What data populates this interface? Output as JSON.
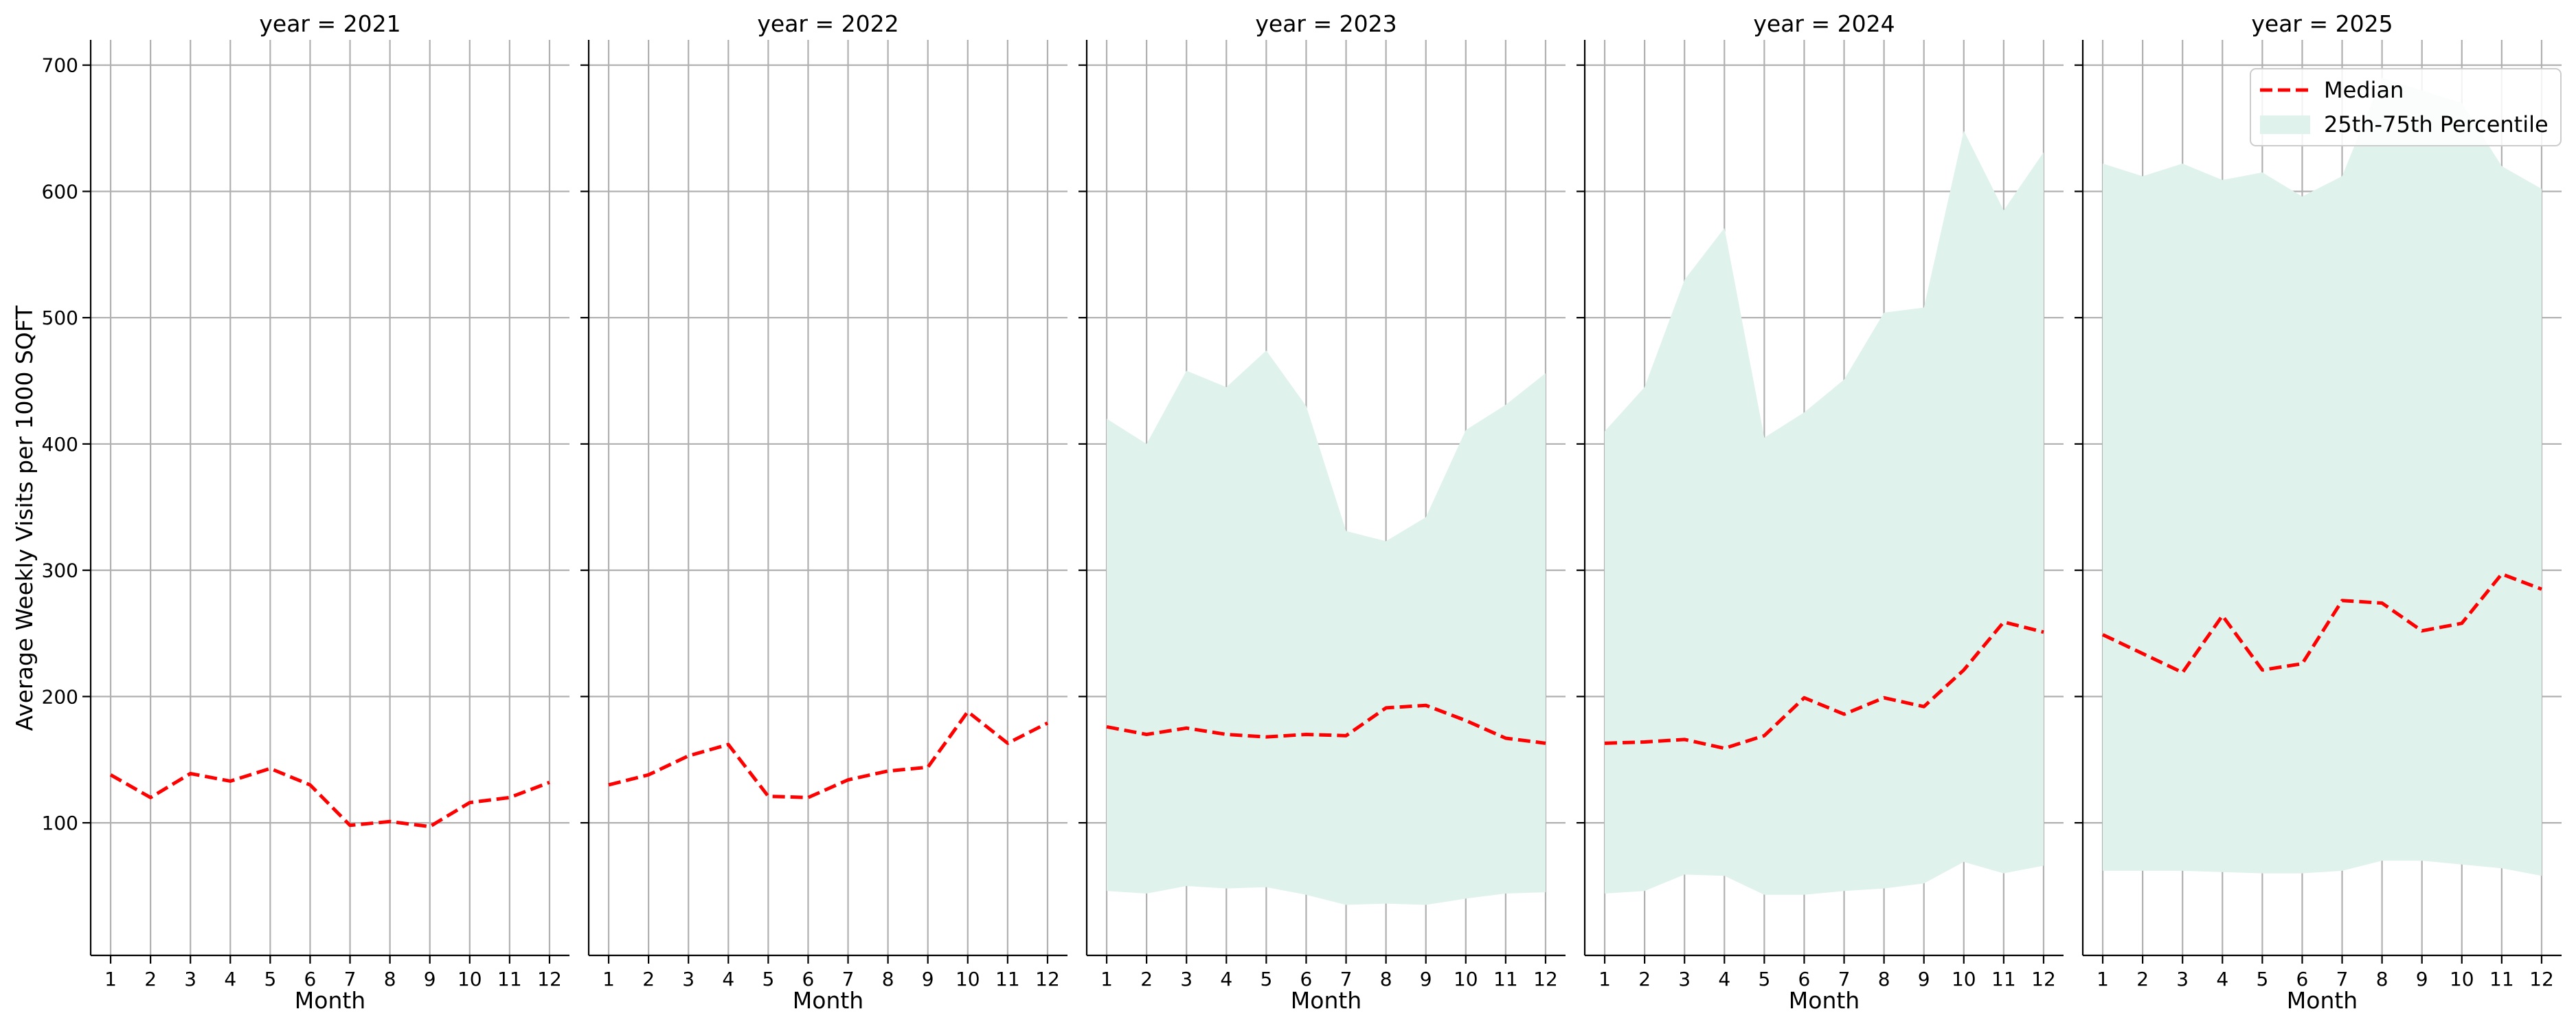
{
  "chart_data": {
    "type": "line",
    "ylabel": "Average Weekly Visits per 1000 SQFT",
    "xlabel": "Month",
    "ylim": [
      -5,
      720
    ],
    "xlim": [
      0.5,
      12.5
    ],
    "yticks": [
      100,
      200,
      300,
      400,
      500,
      600,
      700
    ],
    "xticks": [
      1,
      2,
      3,
      4,
      5,
      6,
      7,
      8,
      9,
      10,
      11,
      12
    ],
    "grid": true,
    "legend": {
      "placement": "top-right",
      "entries": [
        "Median",
        "25th-75th Percentile"
      ]
    },
    "colors": {
      "median": "#ff0000",
      "band": "#dff2ec"
    },
    "panels": [
      {
        "title": "year = 2021",
        "median": [
          138,
          120,
          139,
          133,
          143,
          130,
          98,
          101,
          97,
          116,
          120,
          132
        ],
        "p25": null,
        "p75": null
      },
      {
        "title": "year = 2022",
        "median": [
          130,
          138,
          153,
          162,
          121,
          120,
          134,
          141,
          144,
          188,
          163,
          179
        ],
        "p25": null,
        "p75": null
      },
      {
        "title": "year = 2023",
        "median": [
          176,
          170,
          175,
          170,
          168,
          170,
          169,
          191,
          193,
          181,
          167,
          163
        ],
        "p25": [
          46,
          44,
          50,
          48,
          49,
          43,
          35,
          36,
          35,
          40,
          44,
          45
        ],
        "p75": [
          420,
          400,
          458,
          445,
          474,
          430,
          331,
          323,
          342,
          411,
          431,
          456
        ]
      },
      {
        "title": "year = 2024",
        "median": [
          163,
          164,
          166,
          159,
          169,
          199,
          186,
          199,
          192,
          221,
          259,
          251
        ],
        "p25": [
          44,
          46,
          59,
          58,
          43,
          43,
          46,
          48,
          52,
          69,
          60,
          66
        ],
        "p75": [
          410,
          445,
          530,
          571,
          405,
          425,
          451,
          504,
          508,
          648,
          585,
          631
        ]
      },
      {
        "title": "year = 2025",
        "median": [
          249,
          234,
          219,
          264,
          221,
          226,
          276,
          274,
          252,
          258,
          297,
          285
        ],
        "p25": [
          62,
          62,
          62,
          61,
          60,
          60,
          62,
          70,
          70,
          67,
          64,
          58
        ],
        "p75": [
          622,
          612,
          622,
          609,
          615,
          596,
          612,
          690,
          680,
          670,
          620,
          602
        ]
      }
    ]
  }
}
